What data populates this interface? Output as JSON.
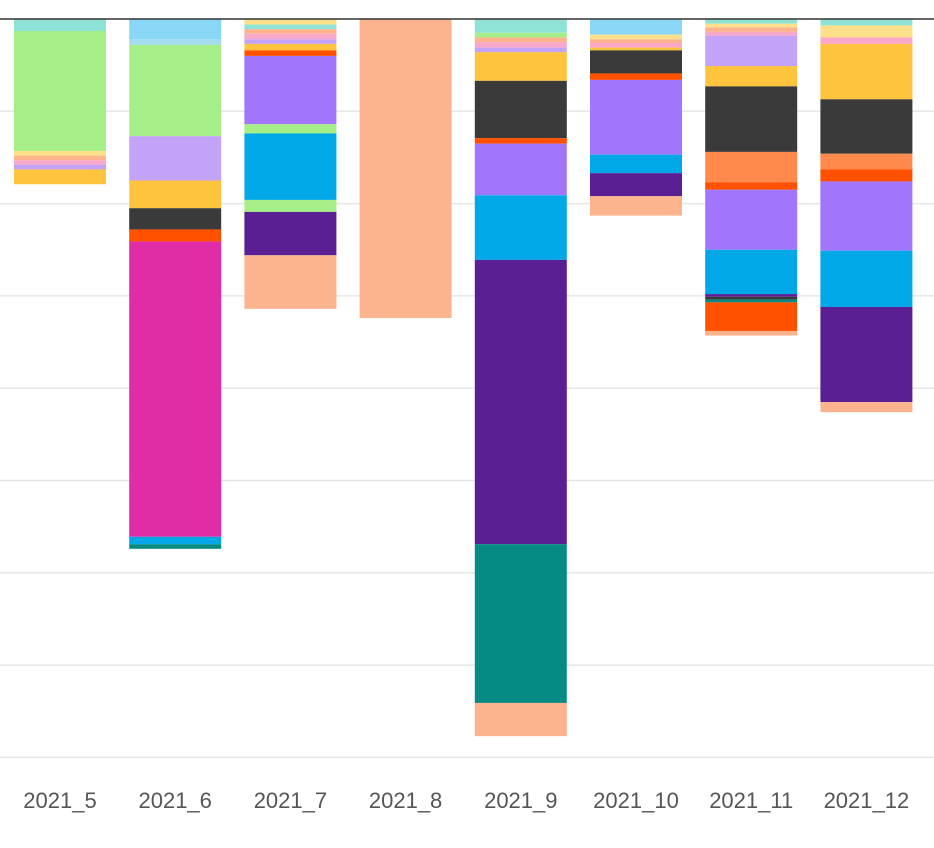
{
  "chart_data": {
    "type": "bar",
    "stacked": true,
    "orientation": "downward from top axis",
    "grid": true,
    "legend": "none",
    "title": "",
    "xlabel": "",
    "ylabel": "",
    "ylim": [
      0,
      8
    ],
    "categories": [
      "2021_5",
      "2021_6",
      "2021_7",
      "2021_8",
      "2021_9",
      "2021_10",
      "2021_11",
      "2021_12"
    ],
    "bars": [
      {
        "category": "2021_5",
        "segments": [
          {
            "value": 0.13,
            "color": "#8fe3d6"
          },
          {
            "value": 1.3,
            "color": "#a6ef88"
          },
          {
            "value": 0.05,
            "color": "#fde18a"
          },
          {
            "value": 0.05,
            "color": "#fbb48e"
          },
          {
            "value": 0.05,
            "color": "#f9a8c9"
          },
          {
            "value": 0.05,
            "color": "#c3a3f7"
          },
          {
            "value": 0.16,
            "color": "#ffc43d"
          }
        ]
      },
      {
        "category": "2021_6",
        "segments": [
          {
            "value": 0.22,
            "color": "#8ad6f6"
          },
          {
            "value": 0.06,
            "color": "#a4dcef"
          },
          {
            "value": 0.99,
            "color": "#a6ef88"
          },
          {
            "value": 0.48,
            "color": "#c3a3f7"
          },
          {
            "value": 0.3,
            "color": "#ffc43d"
          },
          {
            "value": 0.23,
            "color": "#3a3a3a"
          },
          {
            "value": 0.13,
            "color": "#ff5100"
          },
          {
            "value": 3.2,
            "color": "#e12da5"
          },
          {
            "value": 0.08,
            "color": "#00a8e8"
          },
          {
            "value": 0.05,
            "color": "#068a84"
          }
        ]
      },
      {
        "category": "2021_7",
        "segments": [
          {
            "value": 0.06,
            "color": "#fde18a"
          },
          {
            "value": 0.05,
            "color": "#8fe3d6"
          },
          {
            "value": 0.05,
            "color": "#fbb48e"
          },
          {
            "value": 0.06,
            "color": "#f9a8c9"
          },
          {
            "value": 0.05,
            "color": "#c3a3f7"
          },
          {
            "value": 0.07,
            "color": "#ffc43d"
          },
          {
            "value": 0.06,
            "color": "#ff5100"
          },
          {
            "value": 0.74,
            "color": "#a175fc"
          },
          {
            "value": 0.1,
            "color": "#a6ef88"
          },
          {
            "value": 0.72,
            "color": "#00a8e8"
          },
          {
            "value": 0.13,
            "color": "#a6ef88"
          },
          {
            "value": 0.47,
            "color": "#5b1f94"
          },
          {
            "value": 0.58,
            "color": "#fbb48e"
          }
        ]
      },
      {
        "category": "2021_8",
        "segments": [
          {
            "value": 3.24,
            "color": "#fbb48e"
          }
        ]
      },
      {
        "category": "2021_9",
        "segments": [
          {
            "value": 0.15,
            "color": "#8fe3d6"
          },
          {
            "value": 0.05,
            "color": "#a6ef88"
          },
          {
            "value": 0.05,
            "color": "#fbb48e"
          },
          {
            "value": 0.06,
            "color": "#f9a8c9"
          },
          {
            "value": 0.05,
            "color": "#c3a3f7"
          },
          {
            "value": 0.31,
            "color": "#ffc43d"
          },
          {
            "value": 0.62,
            "color": "#3a3a3a"
          },
          {
            "value": 0.06,
            "color": "#ff5100"
          },
          {
            "value": 0.56,
            "color": "#a175fc"
          },
          {
            "value": 0.7,
            "color": "#00a8e8"
          },
          {
            "value": 3.08,
            "color": "#5b1f94"
          },
          {
            "value": 1.72,
            "color": "#068a84"
          },
          {
            "value": 0.36,
            "color": "#fbb48e"
          }
        ]
      },
      {
        "category": "2021_10",
        "segments": [
          {
            "value": 0.17,
            "color": "#8ad6f6"
          },
          {
            "value": 0.05,
            "color": "#fde18a"
          },
          {
            "value": 0.04,
            "color": "#fbb48e"
          },
          {
            "value": 0.05,
            "color": "#f9a8c9"
          },
          {
            "value": 0.03,
            "color": "#ffc43d"
          },
          {
            "value": 0.25,
            "color": "#3a3a3a"
          },
          {
            "value": 0.07,
            "color": "#ff5100"
          },
          {
            "value": 0.81,
            "color": "#a175fc"
          },
          {
            "value": 0.2,
            "color": "#00a8e8"
          },
          {
            "value": 0.25,
            "color": "#5b1f94"
          },
          {
            "value": 0.21,
            "color": "#fbb48e"
          }
        ]
      },
      {
        "category": "2021_11",
        "segments": [
          {
            "value": 0.05,
            "color": "#8fe3d6"
          },
          {
            "value": 0.04,
            "color": "#fde18a"
          },
          {
            "value": 0.05,
            "color": "#fbb48e"
          },
          {
            "value": 0.04,
            "color": "#f9a8c9"
          },
          {
            "value": 0.33,
            "color": "#c3a3f7"
          },
          {
            "value": 0.22,
            "color": "#ffc43d"
          },
          {
            "value": 0.71,
            "color": "#3a3a3a"
          },
          {
            "value": 0.33,
            "color": "#ff8a4c"
          },
          {
            "value": 0.08,
            "color": "#ff5100"
          },
          {
            "value": 0.65,
            "color": "#a175fc"
          },
          {
            "value": 0.48,
            "color": "#00a8e8"
          },
          {
            "value": 0.03,
            "color": "#5b1f94"
          },
          {
            "value": 0.03,
            "color": "#3a3a3a"
          },
          {
            "value": 0.03,
            "color": "#068a84"
          },
          {
            "value": 0.31,
            "color": "#ff5100"
          },
          {
            "value": 0.05,
            "color": "#fbb48e"
          }
        ]
      },
      {
        "category": "2021_12",
        "segments": [
          {
            "value": 0.07,
            "color": "#8fe3d6"
          },
          {
            "value": 0.13,
            "color": "#fde18a"
          },
          {
            "value": 0.07,
            "color": "#f9a8c9"
          },
          {
            "value": 0.6,
            "color": "#ffc43d"
          },
          {
            "value": 0.59,
            "color": "#3a3a3a"
          },
          {
            "value": 0.17,
            "color": "#ff8a4c"
          },
          {
            "value": 0.13,
            "color": "#ff5100"
          },
          {
            "value": 0.75,
            "color": "#a175fc"
          },
          {
            "value": 0.61,
            "color": "#00a8e8"
          },
          {
            "value": 1.03,
            "color": "#5b1f94"
          },
          {
            "value": 0.11,
            "color": "#fbb48e"
          }
        ]
      }
    ]
  }
}
